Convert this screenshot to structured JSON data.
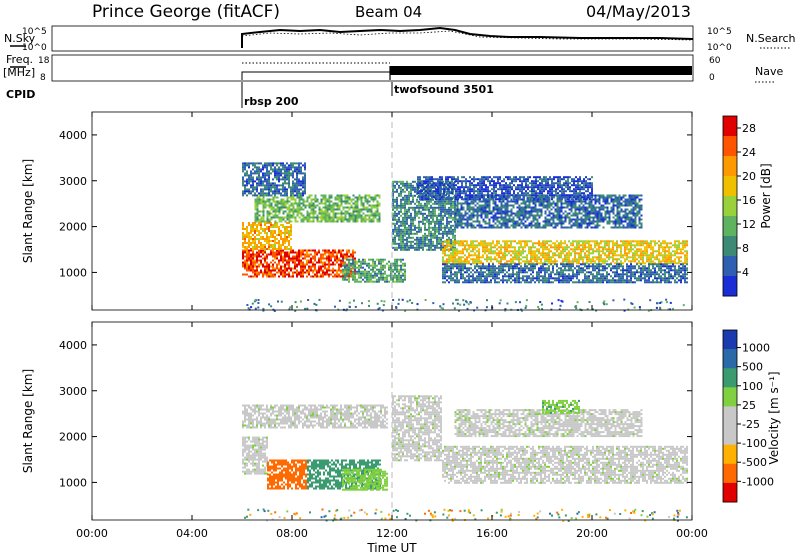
{
  "header": {
    "site": "Prince George (fitACF)",
    "beam": "Beam 04",
    "date": "04/May/2013"
  },
  "left_labels": {
    "nsky": "N.Sky",
    "freq": "Freq.",
    "freq_unit": "[MHz]",
    "cpid": "CPID"
  },
  "right_labels": {
    "nsearch": "N.Search",
    "nave": "Nave"
  },
  "status_panels": {
    "noise_ticks_left": [
      "10^5",
      "10^0"
    ],
    "noise_ticks_right": [
      "10^5",
      "10^0"
    ],
    "freq_ticks": [
      "18",
      "8"
    ],
    "nave_ticks": [
      "60",
      "0"
    ]
  },
  "cpid_segments": [
    {
      "label": "rbsp 200",
      "start_hour": 6.0
    },
    {
      "label": "twofsound 3501",
      "start_hour": 12.0
    }
  ],
  "colors": {
    "power_scale": [
      "#1a2ed6",
      "#2f5fb0",
      "#3c8a76",
      "#5fb35f",
      "#9ad13a",
      "#f0c000",
      "#ff9900",
      "#ff5500",
      "#e00000"
    ],
    "velocity_scale": [
      "#1a3ab0",
      "#2a6aa8",
      "#3a9a70",
      "#80d040",
      "#c8c8c8",
      "#c8c8c8",
      "#ffb000",
      "#ff6a00",
      "#e00000"
    ],
    "ground_scatter": "#c8c8c8"
  },
  "chart_data": [
    {
      "type": "heatmap",
      "name_in_figure": "Power",
      "xlabel": "Time UT",
      "ylabel": "Slant Range [km]",
      "xlim": [
        0,
        24
      ],
      "ylim": [
        180,
        4500
      ],
      "x_ticks": [
        "00:00",
        "04:00",
        "08:00",
        "12:00",
        "16:00",
        "20:00",
        "00:00"
      ],
      "y_ticks": [
        1000,
        2000,
        3000,
        4000
      ],
      "colorbar": {
        "label": "Power [dB]",
        "ticks": [
          4,
          8,
          12,
          16,
          20,
          24,
          28
        ],
        "range": [
          0,
          30
        ]
      },
      "bands": [
        {
          "t0": 6.0,
          "t1": 10.5,
          "r0": 900,
          "r1": 1500,
          "value": 26
        },
        {
          "t0": 6.0,
          "t1": 8.0,
          "r0": 1500,
          "r1": 2100,
          "value": 20
        },
        {
          "t0": 6.5,
          "t1": 11.5,
          "r0": 2100,
          "r1": 2700,
          "value": 12
        },
        {
          "t0": 6.0,
          "t1": 8.5,
          "r0": 2700,
          "r1": 3400,
          "value": 6
        },
        {
          "t0": 10.0,
          "t1": 12.5,
          "r0": 800,
          "r1": 1300,
          "value": 10
        },
        {
          "t0": 12.0,
          "t1": 14.5,
          "r0": 1500,
          "r1": 3000,
          "value": 8
        },
        {
          "t0": 14.0,
          "t1": 23.8,
          "r0": 1200,
          "r1": 1700,
          "value": 18
        },
        {
          "t0": 14.0,
          "t1": 23.8,
          "r0": 800,
          "r1": 1200,
          "value": 6
        },
        {
          "t0": 14.5,
          "t1": 22.0,
          "r0": 2000,
          "r1": 2700,
          "value": 6
        },
        {
          "t0": 13.0,
          "t1": 20.0,
          "r0": 2600,
          "r1": 3100,
          "value": 4
        }
      ]
    },
    {
      "type": "heatmap",
      "name_in_figure": "Velocity",
      "xlabel": "Time UT",
      "ylabel": "Slant Range [km]",
      "xlim": [
        0,
        24
      ],
      "ylim": [
        180,
        4500
      ],
      "x_ticks": [
        "00:00",
        "04:00",
        "08:00",
        "12:00",
        "16:00",
        "20:00",
        "00:00"
      ],
      "y_ticks": [
        1000,
        2000,
        3000,
        4000
      ],
      "colorbar": {
        "label": "Velocity [m s⁻¹]",
        "ticks": [
          1000,
          500,
          100,
          25,
          -25,
          -100,
          -500,
          -1000
        ]
      },
      "bands": [
        {
          "t0": 6.0,
          "t1": 7.0,
          "r0": 1200,
          "r1": 2000,
          "value": 0
        },
        {
          "t0": 7.0,
          "t1": 8.6,
          "r0": 850,
          "r1": 1500,
          "value": -600
        },
        {
          "t0": 8.6,
          "t1": 11.5,
          "r0": 850,
          "r1": 1500,
          "value": 300
        },
        {
          "t0": 10.0,
          "t1": 11.8,
          "r0": 850,
          "r1": 1300,
          "value": 60
        },
        {
          "t0": 6.0,
          "t1": 11.8,
          "r0": 2200,
          "r1": 2700,
          "value": 0
        },
        {
          "t0": 12.0,
          "t1": 14.0,
          "r0": 1500,
          "r1": 2900,
          "value": 0
        },
        {
          "t0": 14.0,
          "t1": 23.8,
          "r0": 1000,
          "r1": 1800,
          "value": 0
        },
        {
          "t0": 14.5,
          "t1": 22.0,
          "r0": 2000,
          "r1": 2600,
          "value": 0
        },
        {
          "t0": 18.0,
          "t1": 19.5,
          "r0": 2500,
          "r1": 2800,
          "value": 80
        }
      ]
    }
  ]
}
